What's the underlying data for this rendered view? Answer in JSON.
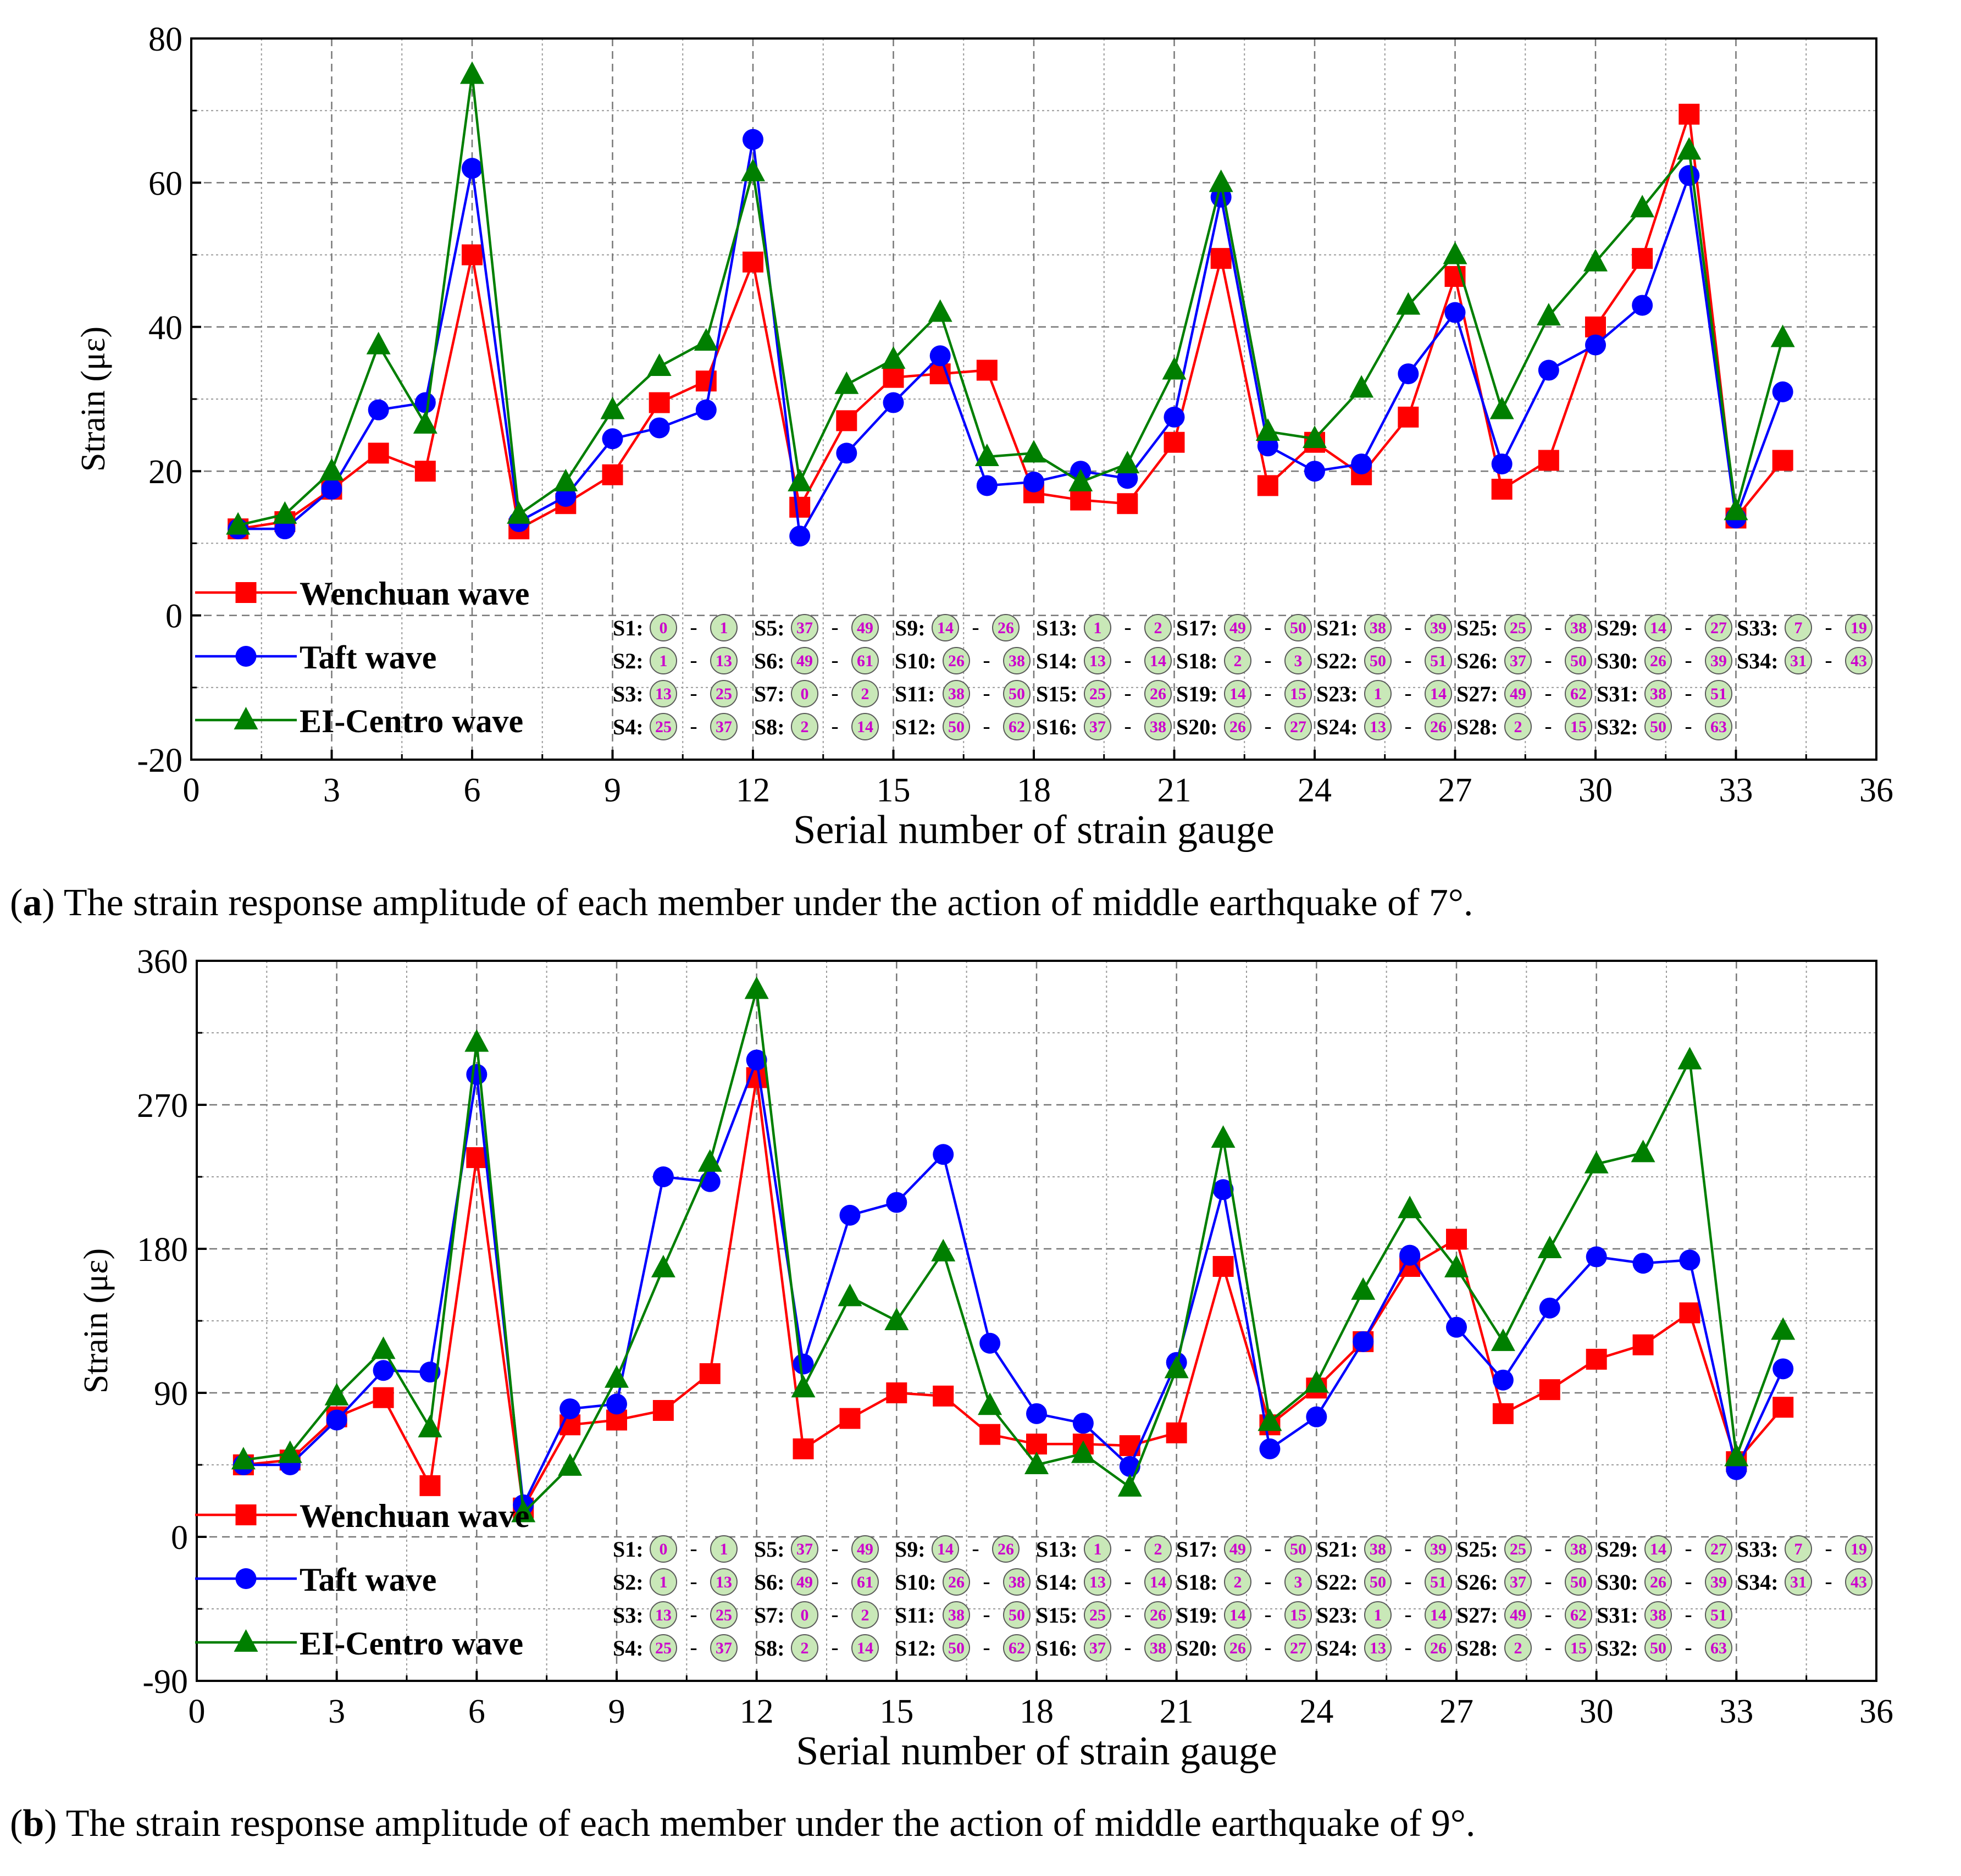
{
  "colors": {
    "wenchuan": "#ff0000",
    "taft": "#0000ff",
    "elcentro": "#007f00",
    "badge_fill": "#c9e8b8",
    "badge_stroke": "#5a5a5a",
    "badge_text": "#cc00cc",
    "grid": "#9a9a9a"
  },
  "chart_data": [
    {
      "type": "line",
      "caption_prefix": "(",
      "caption_letter": "a",
      "caption_rest": ") The strain response amplitude of each member under the action of middle earthquake of 7°.",
      "xlabel": "Serial number of strain gauge",
      "ylabel": "Strain (με)",
      "xlim": [
        0,
        36
      ],
      "ylim": [
        -20,
        80
      ],
      "xticks": [
        0,
        3,
        6,
        9,
        12,
        15,
        18,
        21,
        24,
        27,
        30,
        33,
        36
      ],
      "yticks": [
        -20,
        0,
        20,
        40,
        60,
        80
      ],
      "grid": true,
      "legend_position": "bottom-left",
      "x": [
        1,
        2,
        3,
        4,
        5,
        6,
        7,
        8,
        9,
        10,
        11,
        12,
        13,
        14,
        15,
        16,
        17,
        18,
        19,
        20,
        21,
        22,
        23,
        24,
        25,
        26,
        27,
        28,
        29,
        30,
        31,
        32,
        33,
        34
      ],
      "series": [
        {
          "name": "Wenchuan wave",
          "marker": "square",
          "values": [
            12,
            13,
            17.5,
            22.5,
            20,
            50,
            12,
            15.5,
            19.5,
            29.5,
            32.5,
            49,
            15,
            27,
            33,
            33.5,
            34,
            17,
            16,
            15.5,
            24,
            49.5,
            18,
            24,
            19.5,
            27.5,
            47,
            17.5,
            21.5,
            40,
            49.5,
            69.5,
            13.5,
            21.5
          ]
        },
        {
          "name": "Taft wave",
          "marker": "circle",
          "values": [
            12,
            12,
            17.5,
            28.5,
            29.5,
            62,
            13,
            16.5,
            24.5,
            26,
            28.5,
            66,
            11,
            22.5,
            29.5,
            36,
            18,
            18.5,
            20,
            19,
            27.5,
            58,
            23.5,
            20,
            21,
            33.5,
            42,
            21,
            34,
            37.5,
            43,
            61,
            13.5,
            31
          ]
        },
        {
          "name": "EI-Centro wave",
          "marker": "triangle",
          "values": [
            12.5,
            14,
            20,
            37.5,
            26.5,
            75,
            14,
            18.5,
            28.5,
            34.5,
            38,
            61.5,
            18.5,
            32,
            35.5,
            42,
            22,
            22.5,
            18.5,
            21,
            34,
            60,
            25.5,
            24.5,
            31.5,
            43,
            50,
            28.5,
            41.5,
            49,
            56.5,
            64.5,
            14.5,
            38.5
          ]
        }
      ]
    },
    {
      "type": "line",
      "caption_prefix": "(",
      "caption_letter": "b",
      "caption_rest": ") The strain response amplitude of each member under the action of middle earthquake of 9°.",
      "xlabel": "Serial number of strain gauge",
      "ylabel": "Strain (με)",
      "xlim": [
        0,
        36
      ],
      "ylim": [
        -90,
        360
      ],
      "xticks": [
        0,
        3,
        6,
        9,
        12,
        15,
        18,
        21,
        24,
        27,
        30,
        33,
        36
      ],
      "yticks": [
        -90,
        0,
        90,
        180,
        270,
        360
      ],
      "grid": true,
      "legend_position": "bottom-left",
      "x": [
        1,
        2,
        3,
        4,
        5,
        6,
        7,
        8,
        9,
        10,
        11,
        12,
        13,
        14,
        15,
        16,
        17,
        18,
        19,
        20,
        21,
        22,
        23,
        24,
        25,
        26,
        27,
        28,
        29,
        30,
        31,
        32,
        33,
        34
      ],
      "series": [
        {
          "name": "Wenchuan wave",
          "marker": "square",
          "values": [
            45,
            48,
            75,
            87,
            32,
            237,
            18,
            70,
            73,
            79,
            102,
            287,
            55,
            74,
            90,
            88,
            64,
            58,
            58,
            57,
            65,
            169,
            70,
            93,
            122,
            169,
            186,
            77,
            92,
            111,
            120,
            140,
            47,
            81
          ]
        },
        {
          "name": "Taft wave",
          "marker": "circle",
          "values": [
            45,
            45,
            73,
            104,
            103,
            289,
            20,
            80,
            83,
            225,
            222,
            298,
            108,
            201,
            209,
            239,
            121,
            77,
            71,
            44,
            109,
            217,
            55,
            75,
            122,
            176,
            131,
            98,
            143,
            175,
            171,
            173,
            42,
            105
          ]
        },
        {
          "name": "EI-Centro wave",
          "marker": "triangle",
          "values": [
            48,
            52,
            88,
            117,
            68,
            309,
            15,
            44,
            99,
            168,
            234,
            342,
            93,
            150,
            135,
            178,
            82,
            45,
            52,
            31,
            105,
            249,
            72,
            96,
            154,
            205,
            168,
            122,
            180,
            233,
            240,
            298,
            50,
            129
          ]
        }
      ]
    }
  ],
  "gauge_table": [
    [
      [
        "S1:",
        "0",
        "1"
      ],
      [
        "S2:",
        "1",
        "13"
      ],
      [
        "S3:",
        "13",
        "25"
      ],
      [
        "S4:",
        "25",
        "37"
      ]
    ],
    [
      [
        "S5:",
        "37",
        "49"
      ],
      [
        "S6:",
        "49",
        "61"
      ],
      [
        "S7:",
        "0",
        "2"
      ],
      [
        "S8:",
        "2",
        "14"
      ]
    ],
    [
      [
        "S9:",
        "14",
        "26"
      ],
      [
        "S10:",
        "26",
        "38"
      ],
      [
        "S11:",
        "38",
        "50"
      ],
      [
        "S12:",
        "50",
        "62"
      ]
    ],
    [
      [
        "S13:",
        "1",
        "2"
      ],
      [
        "S14:",
        "13",
        "14"
      ],
      [
        "S15:",
        "25",
        "26"
      ],
      [
        "S16:",
        "37",
        "38"
      ]
    ],
    [
      [
        "S17:",
        "49",
        "50"
      ],
      [
        "S18:",
        "2",
        "3"
      ],
      [
        "S19:",
        "14",
        "15"
      ],
      [
        "S20:",
        "26",
        "27"
      ]
    ],
    [
      [
        "S21:",
        "38",
        "39"
      ],
      [
        "S22:",
        "50",
        "51"
      ],
      [
        "S23:",
        "1",
        "14"
      ],
      [
        "S24:",
        "13",
        "26"
      ]
    ],
    [
      [
        "S25:",
        "25",
        "38"
      ],
      [
        "S26:",
        "37",
        "50"
      ],
      [
        "S27:",
        "49",
        "62"
      ],
      [
        "S28:",
        "2",
        "15"
      ]
    ],
    [
      [
        "S29:",
        "14",
        "27"
      ],
      [
        "S30:",
        "26",
        "39"
      ],
      [
        "S31:",
        "38",
        "51"
      ],
      [
        "S32:",
        "50",
        "63"
      ]
    ],
    [
      [
        "S33:",
        "7",
        "19"
      ],
      [
        "S34:",
        "31",
        "43"
      ]
    ]
  ],
  "gauge_dash": "-"
}
